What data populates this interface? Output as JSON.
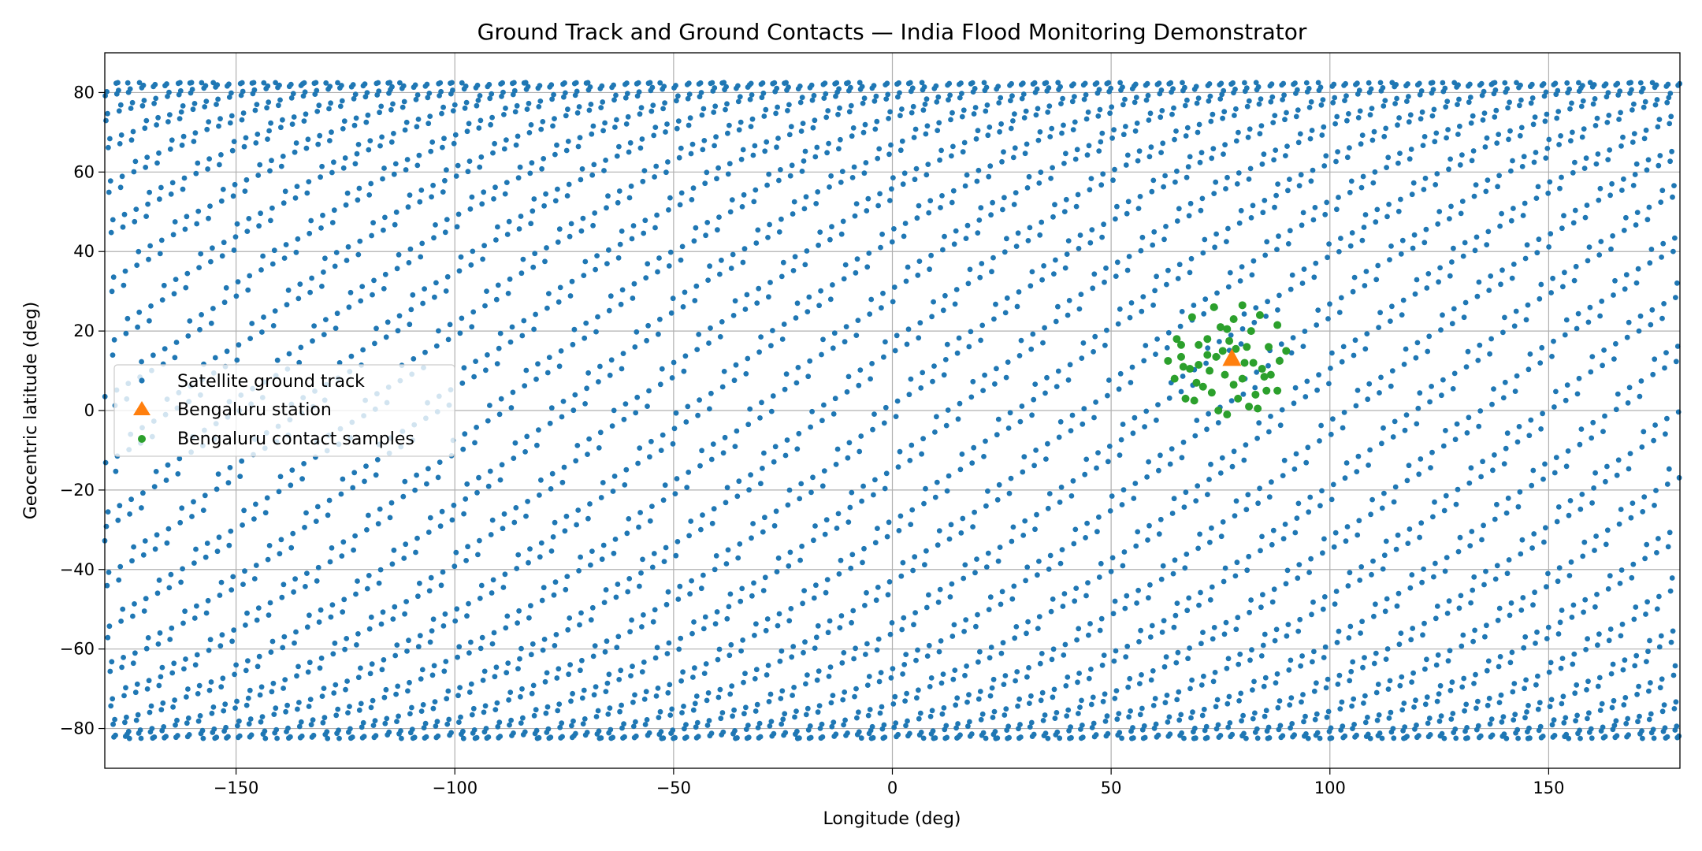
{
  "chart_data": {
    "type": "scatter",
    "title": "Ground Track and Ground Contacts — India Flood Monitoring Demonstrator",
    "xlabel": "Longitude (deg)",
    "ylabel": "Geocentric latitude (deg)",
    "xlim": [
      -180,
      180
    ],
    "ylim": [
      -90,
      90
    ],
    "xticks": [
      -150,
      -100,
      -50,
      0,
      50,
      100,
      150
    ],
    "xtick_labels": [
      "−150",
      "−100",
      "−50",
      "0",
      "50",
      "100",
      "150"
    ],
    "yticks": [
      -80,
      -60,
      -40,
      -20,
      0,
      20,
      40,
      60,
      80
    ],
    "ytick_labels": [
      "−80",
      "−60",
      "−40",
      "−20",
      "0",
      "20",
      "40",
      "60",
      "80"
    ],
    "grid": true,
    "legend_position": "center-left",
    "series": [
      {
        "name": "Satellite ground track",
        "marker": "circle",
        "color": "#1f77b4",
        "points": "approx. 4500 samples uniformly covering longitude -180..180 and latitude -82.5..82.5 (dense repeating ground-track pattern)"
      },
      {
        "name": "Bengaluru station",
        "marker": "triangle",
        "color": "#ff7f0e",
        "points": [
          [
            77.6,
            13.0
          ]
        ]
      },
      {
        "name": "Bengaluru contact samples",
        "marker": "circle",
        "color": "#2ca02c",
        "points": [
          [
            65.0,
            18.0
          ],
          [
            66.0,
            16.5
          ],
          [
            68.5,
            23.5
          ],
          [
            70.0,
            16.5
          ],
          [
            72.0,
            18.0
          ],
          [
            73.5,
            26.0
          ],
          [
            75.0,
            21.0
          ],
          [
            76.5,
            20.5
          ],
          [
            78.0,
            23.0
          ],
          [
            80.0,
            26.5
          ],
          [
            82.0,
            20.0
          ],
          [
            84.0,
            24.0
          ],
          [
            86.0,
            16.0
          ],
          [
            88.0,
            21.5
          ],
          [
            90.0,
            15.0
          ],
          [
            63.0,
            12.5
          ],
          [
            66.5,
            11.0
          ],
          [
            68.0,
            10.5
          ],
          [
            70.0,
            11.5
          ],
          [
            72.5,
            10.0
          ],
          [
            74.0,
            13.5
          ],
          [
            75.5,
            15.0
          ],
          [
            78.5,
            15.5
          ],
          [
            80.5,
            12.0
          ],
          [
            82.5,
            12.0
          ],
          [
            84.5,
            10.5
          ],
          [
            86.5,
            9.0
          ],
          [
            88.5,
            12.5
          ],
          [
            64.5,
            8.0
          ],
          [
            67.0,
            3.0
          ],
          [
            69.0,
            2.5
          ],
          [
            71.0,
            6.0
          ],
          [
            73.0,
            4.5
          ],
          [
            74.5,
            0.0
          ],
          [
            76.5,
            -1.0
          ],
          [
            78.0,
            6.5
          ],
          [
            80.0,
            8.0
          ],
          [
            81.5,
            1.0
          ],
          [
            83.0,
            4.0
          ],
          [
            85.5,
            5.0
          ],
          [
            88.0,
            5.0
          ],
          [
            76.0,
            9.0
          ],
          [
            79.0,
            3.0
          ],
          [
            83.5,
            0.5
          ],
          [
            72.0,
            14.0
          ],
          [
            85.0,
            8.5
          ],
          [
            66.0,
            13.5
          ],
          [
            69.5,
            7.0
          ],
          [
            77.0,
            17.5
          ],
          [
            81.0,
            16.0
          ]
        ]
      }
    ]
  },
  "colors": {
    "track": "#1f77b4",
    "station": "#ff7f0e",
    "contact": "#2ca02c",
    "grid": "#b0b0b0"
  }
}
